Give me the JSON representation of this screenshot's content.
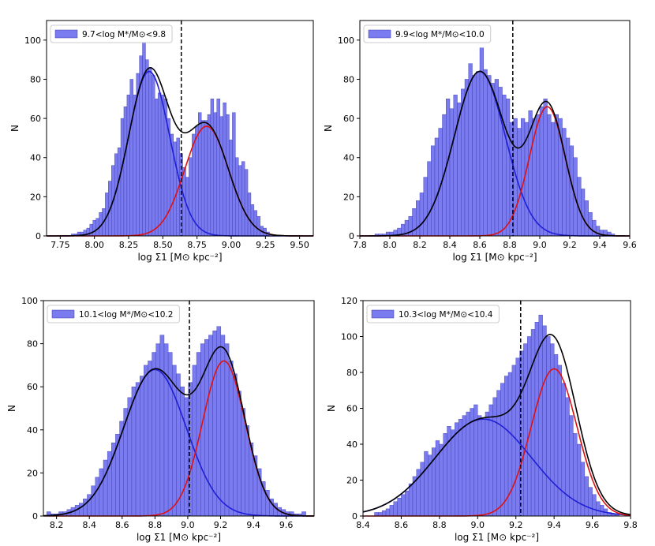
{
  "chart_data": [
    {
      "type": "bar",
      "title": "",
      "legend": "9.7<log M*/M⊙<9.8",
      "legend_placement": "top-left",
      "xlabel": "log Σ1 [M⊙ kpc⁻²]",
      "ylabel": "N",
      "xlim": [
        7.65,
        9.6
      ],
      "ylim": [
        0,
        110
      ],
      "xticks": [
        "7.75",
        "8.00",
        "8.25",
        "8.50",
        "8.75",
        "9.00",
        "9.25",
        "9.50"
      ],
      "yticks": [
        "0",
        "20",
        "40",
        "60",
        "80",
        "100"
      ],
      "hist_range": [
        7.83,
        9.28
      ],
      "hist_values": [
        1,
        1,
        2,
        2,
        3,
        4,
        6,
        8,
        9,
        12,
        14,
        22,
        28,
        36,
        42,
        45,
        60,
        66,
        72,
        80,
        72,
        83,
        92,
        99,
        90,
        86,
        82,
        70,
        73,
        72,
        70,
        60,
        52,
        48,
        50,
        42,
        35,
        30,
        40,
        52,
        56,
        63,
        59,
        59,
        62,
        70,
        63,
        70,
        61,
        68,
        62,
        49,
        63,
        40,
        36,
        38,
        34,
        22,
        16,
        13,
        10,
        5,
        4,
        2
      ],
      "divider_x": 8.635,
      "components": [
        {
          "name": "blue",
          "color": "#1f1fd6",
          "amp": 84,
          "mu": 8.4,
          "sigma": 0.15
        },
        {
          "name": "red",
          "color": "#e01010",
          "amp": 56,
          "mu": 8.82,
          "sigma": 0.16
        }
      ]
    },
    {
      "type": "bar",
      "title": "",
      "legend": "9.9<log M*/M⊙<10.0",
      "legend_placement": "top-left",
      "xlabel": "log Σ1 [M⊙ kpc⁻²]",
      "ylabel": "N",
      "xlim": [
        7.8,
        9.6
      ],
      "ylim": [
        0,
        110
      ],
      "xticks": [
        "7.8",
        "8.0",
        "8.2",
        "8.4",
        "8.6",
        "8.8",
        "9.0",
        "9.2",
        "9.4",
        "9.6"
      ],
      "yticks": [
        "0",
        "20",
        "40",
        "60",
        "80",
        "100"
      ],
      "hist_range": [
        7.9,
        9.5
      ],
      "hist_values": [
        1,
        1,
        1,
        2,
        2,
        3,
        4,
        6,
        8,
        10,
        14,
        18,
        22,
        30,
        38,
        46,
        50,
        55,
        62,
        70,
        65,
        72,
        68,
        75,
        80,
        88,
        82,
        84,
        96,
        85,
        82,
        78,
        80,
        76,
        72,
        70,
        58,
        60,
        55,
        60,
        58,
        64,
        60,
        62,
        66,
        70,
        62,
        58,
        62,
        60,
        55,
        50,
        46,
        40,
        30,
        24,
        18,
        12,
        8,
        5,
        3,
        3,
        2,
        1
      ],
      "divider_x": 8.82,
      "components": [
        {
          "name": "blue",
          "color": "#1f1fd6",
          "amp": 84,
          "mu": 8.6,
          "sigma": 0.17
        },
        {
          "name": "red",
          "color": "#e01010",
          "amp": 66,
          "mu": 9.05,
          "sigma": 0.12
        }
      ]
    },
    {
      "type": "bar",
      "title": "",
      "legend": "10.1<log M*/M⊙<10.2",
      "legend_placement": "top-left",
      "xlabel": "log Σ1 [M⊙ kpc⁻²]",
      "ylabel": "N",
      "xlim": [
        8.12,
        9.77
      ],
      "ylim": [
        0,
        100
      ],
      "xticks": [
        "8.2",
        "8.4",
        "8.6",
        "8.8",
        "9.0",
        "9.2",
        "9.4",
        "9.6"
      ],
      "yticks": [
        "0",
        "20",
        "40",
        "60",
        "80",
        "100"
      ],
      "hist_range": [
        8.14,
        9.72
      ],
      "hist_values": [
        2,
        1,
        1,
        2,
        2,
        3,
        4,
        5,
        6,
        8,
        10,
        14,
        18,
        22,
        26,
        30,
        34,
        38,
        44,
        50,
        55,
        60,
        62,
        65,
        70,
        72,
        76,
        80,
        84,
        80,
        76,
        70,
        66,
        60,
        55,
        62,
        70,
        76,
        80,
        82,
        84,
        86,
        88,
        84,
        80,
        72,
        66,
        58,
        50,
        42,
        34,
        28,
        22,
        16,
        12,
        8,
        6,
        4,
        3,
        2,
        2,
        1,
        1,
        2
      ],
      "divider_x": 9.01,
      "components": [
        {
          "name": "blue",
          "color": "#1f1fd6",
          "amp": 68,
          "mu": 8.8,
          "sigma": 0.19
        },
        {
          "name": "red",
          "color": "#e01010",
          "amp": 72,
          "mu": 9.22,
          "sigma": 0.13
        }
      ]
    },
    {
      "type": "bar",
      "title": "",
      "legend": "10.3<log M*/M⊙<10.4",
      "legend_placement": "top-left",
      "xlabel": "log Σ1 [M⊙ kpc⁻²]",
      "ylabel": "N",
      "xlim": [
        8.4,
        9.8
      ],
      "ylim": [
        0,
        120
      ],
      "xticks": [
        "8.4",
        "8.6",
        "8.8",
        "9.0",
        "9.2",
        "9.4",
        "9.6",
        "9.8"
      ],
      "yticks": [
        "0",
        "20",
        "40",
        "60",
        "80",
        "100",
        "120"
      ],
      "hist_range": [
        8.46,
        9.74
      ],
      "hist_values": [
        2,
        2,
        3,
        4,
        6,
        8,
        10,
        12,
        14,
        18,
        22,
        26,
        30,
        36,
        34,
        38,
        42,
        40,
        46,
        50,
        48,
        52,
        54,
        56,
        58,
        60,
        62,
        56,
        54,
        58,
        62,
        66,
        70,
        74,
        78,
        80,
        84,
        88,
        92,
        96,
        100,
        104,
        108,
        112,
        106,
        100,
        96,
        90,
        84,
        74,
        66,
        56,
        46,
        40,
        30,
        22,
        16,
        12,
        8,
        6,
        4,
        2,
        1,
        1
      ],
      "divider_x": 9.225,
      "components": [
        {
          "name": "blue",
          "color": "#1f1fd6",
          "amp": 54,
          "mu": 9.03,
          "sigma": 0.25
        },
        {
          "name": "red",
          "color": "#e01010",
          "amp": 82,
          "mu": 9.4,
          "sigma": 0.12
        }
      ]
    }
  ]
}
